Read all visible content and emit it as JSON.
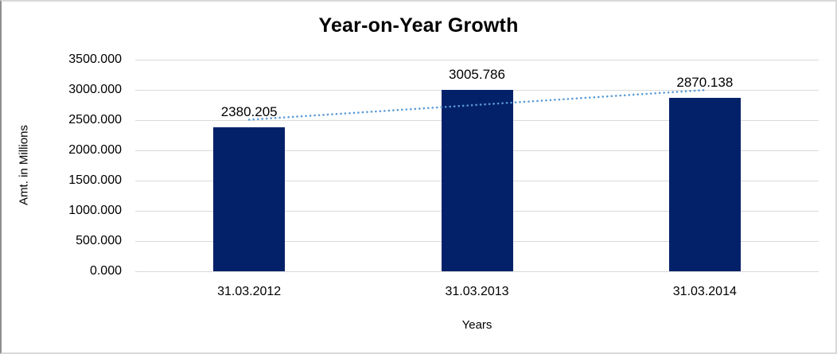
{
  "chart_data": {
    "type": "bar",
    "title": "Year-on-Year Growth",
    "categories": [
      "31.03.2012",
      "31.03.2013",
      "31.03.2014"
    ],
    "values": [
      2380.205,
      3005.786,
      2870.138
    ],
    "data_labels": [
      "2380.205",
      "3005.786",
      "2870.138"
    ],
    "xlabel": "Years",
    "ylabel": "Amt. in Millions",
    "ylim": [
      0,
      3500
    ],
    "y_tick_step": 500,
    "y_tick_labels": [
      "0.000",
      "500.000",
      "1000.000",
      "1500.000",
      "2000.000",
      "2500.000",
      "3000.000",
      "3500.000"
    ],
    "grid": "horizontal-only",
    "legend": "none",
    "bar_color": "#032169",
    "gridline_color": "#d9d9d9",
    "trendline": {
      "type": "linear",
      "style": "dotted",
      "color": "#5b9bd5",
      "start_value": 2507,
      "end_value": 2997
    }
  }
}
